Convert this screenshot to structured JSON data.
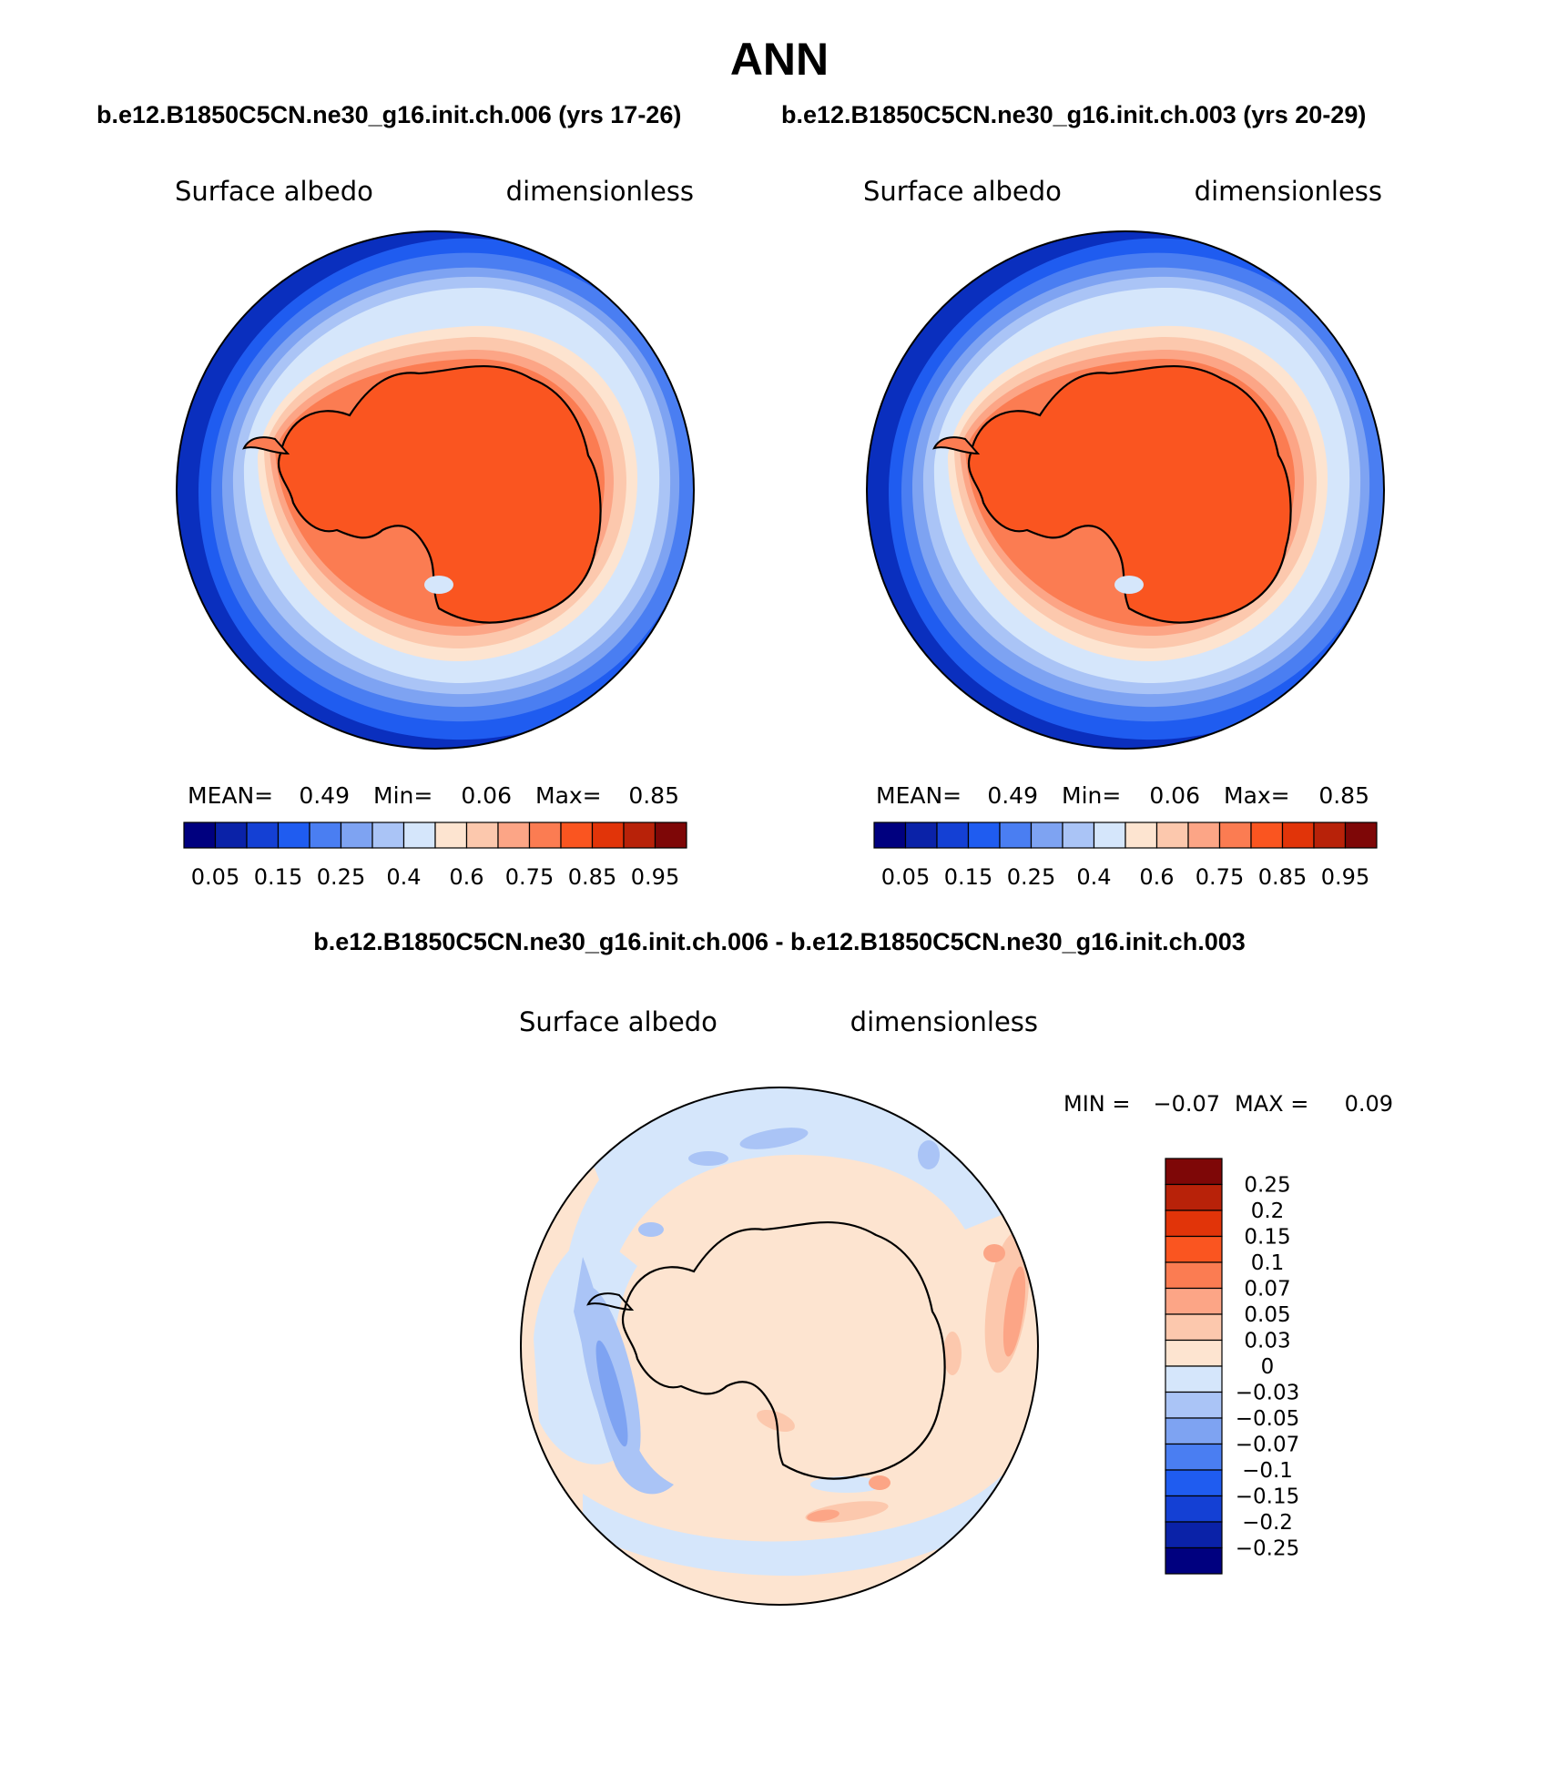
{
  "figure": {
    "title": "ANN",
    "left_case": "b.e12.B1850C5CN.ne30_g16.init.ch.006 (yrs 17-26)",
    "right_case": "b.e12.B1850C5CN.ne30_g16.init.ch.003 (yrs 20-29)",
    "diff_title": "b.e12.B1850C5CN.ne30_g16.init.ch.006 - b.e12.B1850C5CN.ne30_g16.init.ch.003"
  },
  "colors": {
    "ocean_deep": "#0a2fbe",
    "land_ice": "#ff5a1e",
    "coastline": "#000000"
  },
  "chart_data": [
    {
      "type": "heatmap",
      "projection": "south-polar-stereographic",
      "variable_label": "Surface albedo",
      "units_label": "dimensionless",
      "stats": {
        "mean_label": "MEAN=",
        "mean": "0.49",
        "min_label": "Min=",
        "min": "0.06",
        "max_label": "Max=",
        "max": "0.85"
      },
      "colorbar": {
        "orientation": "horizontal",
        "levels": [
          0.05,
          0.1,
          0.15,
          0.2,
          0.25,
          0.3,
          0.4,
          0.5,
          0.6,
          0.65,
          0.75,
          0.8,
          0.85,
          0.9,
          0.95
        ],
        "tick_labels": [
          "0.05",
          "0.15",
          "0.25",
          "0.4",
          "0.6",
          "0.75",
          "0.85",
          "0.95"
        ],
        "colors": [
          "#00007f",
          "#0a22a8",
          "#1440d4",
          "#1f5cf0",
          "#4a7ef2",
          "#7ea3f2",
          "#aac4f6",
          "#d5e6fb",
          "#fde4d0",
          "#fcc8ad",
          "#fca586",
          "#fb7c52",
          "#fa5520",
          "#e13409",
          "#b82209",
          "#7e0707"
        ]
      },
      "field": {
        "open_ocean": 0.06,
        "sea_ice_outer": 0.3,
        "sea_ice_inner": 0.55,
        "sea_ice_edge": 0.7,
        "ice_sheet": 0.85
      }
    },
    {
      "type": "heatmap",
      "projection": "south-polar-stereographic",
      "variable_label": "Surface albedo",
      "units_label": "dimensionless",
      "stats": {
        "mean_label": "MEAN=",
        "mean": "0.49",
        "min_label": "Min=",
        "min": "0.06",
        "max_label": "Max=",
        "max": "0.85"
      },
      "colorbar": {
        "orientation": "horizontal",
        "levels": [
          0.05,
          0.1,
          0.15,
          0.2,
          0.25,
          0.3,
          0.4,
          0.5,
          0.6,
          0.65,
          0.75,
          0.8,
          0.85,
          0.9,
          0.95
        ],
        "tick_labels": [
          "0.05",
          "0.15",
          "0.25",
          "0.4",
          "0.6",
          "0.75",
          "0.85",
          "0.95"
        ],
        "colors": [
          "#00007f",
          "#0a22a8",
          "#1440d4",
          "#1f5cf0",
          "#4a7ef2",
          "#7ea3f2",
          "#aac4f6",
          "#d5e6fb",
          "#fde4d0",
          "#fcc8ad",
          "#fca586",
          "#fb7c52",
          "#fa5520",
          "#e13409",
          "#b82209",
          "#7e0707"
        ]
      },
      "field": {
        "open_ocean": 0.06,
        "sea_ice_outer": 0.3,
        "sea_ice_inner": 0.55,
        "sea_ice_edge": 0.7,
        "ice_sheet": 0.85
      }
    },
    {
      "type": "heatmap",
      "projection": "south-polar-stereographic",
      "variable_label": "Surface albedo",
      "units_label": "dimensionless",
      "stats": {
        "min_label": "MIN =",
        "min": "−0.07",
        "max_label": "MAX =",
        "max": "0.09"
      },
      "colorbar": {
        "orientation": "vertical",
        "levels": [
          0.25,
          0.2,
          0.15,
          0.1,
          0.07,
          0.05,
          0.03,
          0,
          -0.03,
          -0.05,
          -0.07,
          -0.1,
          -0.15,
          -0.2,
          -0.25
        ],
        "tick_labels": [
          "0.25",
          "0.2",
          "0.15",
          "0.1",
          "0.07",
          "0.05",
          "0.03",
          "0",
          "−0.03",
          "−0.05",
          "−0.07",
          "−0.1",
          "−0.15",
          "−0.2",
          "−0.25"
        ],
        "colors": [
          "#7e0707",
          "#b82209",
          "#e13409",
          "#fa5520",
          "#fb7c52",
          "#fca586",
          "#fcc8ad",
          "#fde4d0",
          "#d5e6fb",
          "#aac4f6",
          "#7ea3f2",
          "#4a7ef2",
          "#1f5cf0",
          "#1440d4",
          "#0a22a8",
          "#00007f"
        ]
      },
      "field": {
        "background": 0.01,
        "weddell_sector": -0.04,
        "ross_sector_max": 0.09,
        "pacific_sector_min": -0.07
      }
    }
  ]
}
